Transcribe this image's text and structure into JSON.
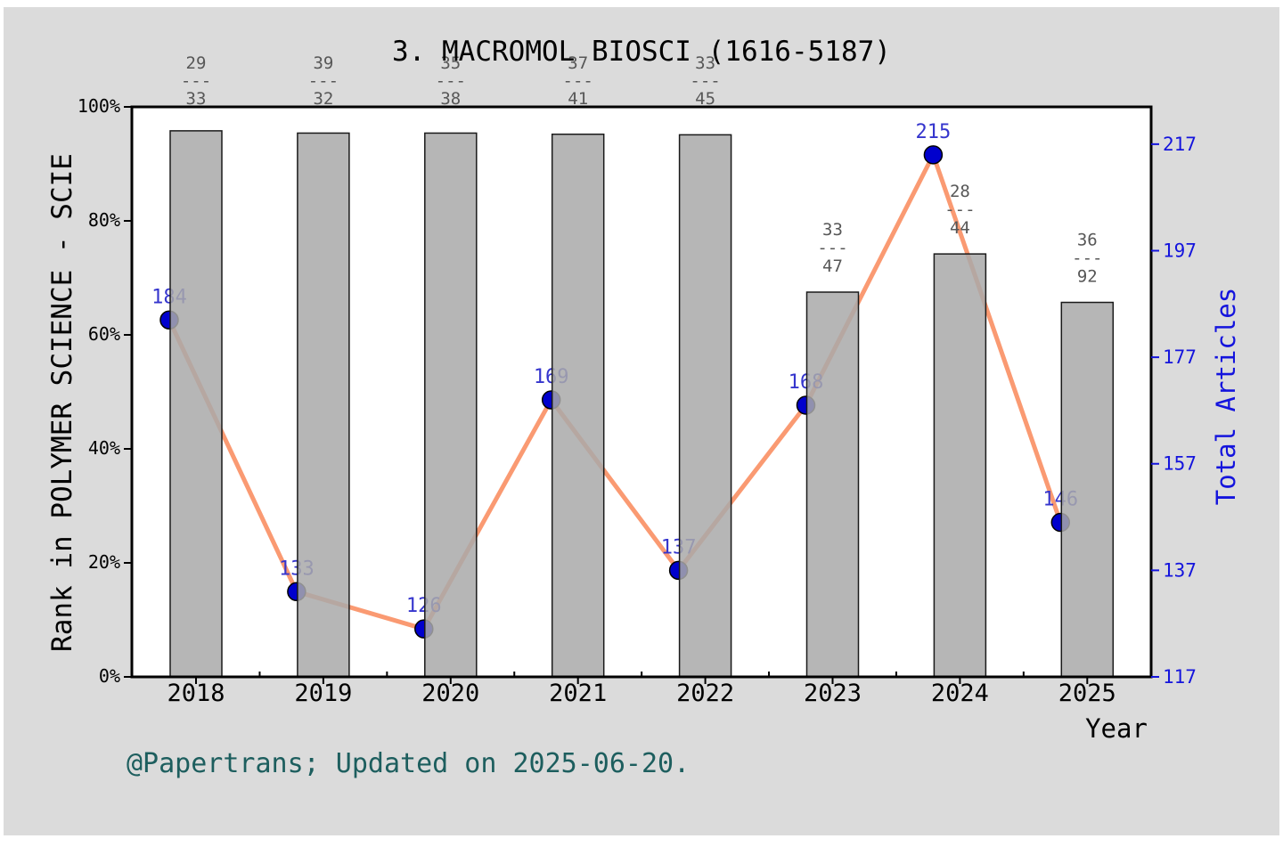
{
  "figure": {
    "annotation": "@Papertrans; Updated on 2025-06-20.",
    "background_color": "#dbdbdb"
  },
  "chart_data": {
    "type": "bar+line-dual-axis",
    "title": "3. MACROMOL BIOSCI (1616-5187)",
    "categories": [
      "2018",
      "2019",
      "2020",
      "2021",
      "2022",
      "2023",
      "2024",
      "2025"
    ],
    "series": [
      {
        "name": "Rank in POLYMER SCIENCE - SCIE",
        "type": "bar",
        "axis": "left",
        "unit": "%",
        "values": [
          95.8,
          95.4,
          95.4,
          95.2,
          95.1,
          67.5,
          74.2,
          65.7
        ]
      },
      {
        "name": "Total Articles",
        "type": "line",
        "axis": "right",
        "values": [
          184,
          133,
          126,
          169,
          137,
          168,
          215,
          146
        ]
      }
    ],
    "fraction_labels": [
      "29/33",
      "39/32",
      "35/38",
      "37/41",
      "33/45",
      "33/47",
      "28/44",
      "36/92"
    ],
    "left_axis": {
      "label": "Rank in POLYMER SCIENCE - SCIE",
      "tick_labels": [
        "0%",
        "20%",
        "40%",
        "60%",
        "80%",
        "100%"
      ],
      "tick_values": [
        0,
        20,
        40,
        60,
        80,
        100
      ],
      "range": [
        0,
        100
      ]
    },
    "right_axis": {
      "label": "Total Articles",
      "tick_labels": [
        "117",
        "137",
        "157",
        "177",
        "197",
        "217"
      ],
      "tick_values": [
        117,
        137,
        157,
        177,
        197,
        217
      ],
      "range": [
        117,
        224
      ]
    },
    "x_axis": {
      "label": "Year"
    },
    "legend": "none",
    "grid": false,
    "colors": {
      "bar_fill": "#a9a9a9",
      "bar_edge": "#1a1a1a",
      "line": "#fa9a72",
      "marker": "#0000cd",
      "marker_edge": "#000000",
      "point_label": "#3535cd",
      "right_axis_text": "#1414dd",
      "fraction_text": "#575757",
      "axis_text": "#000000",
      "annotation_text": "#1d5e5e",
      "plot_background": "#ffffff",
      "figure_background": "#dbdbdb"
    }
  }
}
